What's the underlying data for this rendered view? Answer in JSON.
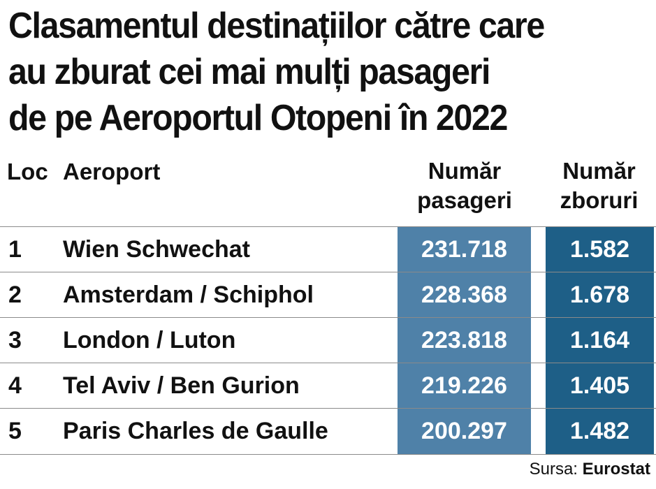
{
  "title": {
    "line1": "Clasamentul destinațiilor către care",
    "line2": "au zburat cei mai mulți pasageri",
    "line3": "de pe Aeroportul Otopeni în 2022"
  },
  "colors": {
    "passengers_band": "#4f81a8",
    "flights_band": "#1e5f87",
    "text": "#111111"
  },
  "table": {
    "headers": {
      "rank": "Loc",
      "airport": "Aeroport",
      "passengers_line1": "Număr",
      "passengers_line2": "pasageri",
      "flights_line1": "Număr",
      "flights_line2": "zboruri"
    },
    "rows": [
      {
        "rank": "1",
        "airport": "Wien Schwechat",
        "passengers": "231.718",
        "flights": "1.582"
      },
      {
        "rank": "2",
        "airport": "Amsterdam / Schiphol",
        "passengers": "228.368",
        "flights": "1.678"
      },
      {
        "rank": "3",
        "airport": "London / Luton",
        "passengers": "223.818",
        "flights": "1.164"
      },
      {
        "rank": "4",
        "airport": "Tel Aviv / Ben Gurion",
        "passengers": "219.226",
        "flights": "1.405"
      },
      {
        "rank": "5",
        "airport": "Paris Charles de Gaulle",
        "passengers": "200.297",
        "flights": "1.482"
      }
    ]
  },
  "source": {
    "label": "Sursa:",
    "name": "Eurostat"
  }
}
